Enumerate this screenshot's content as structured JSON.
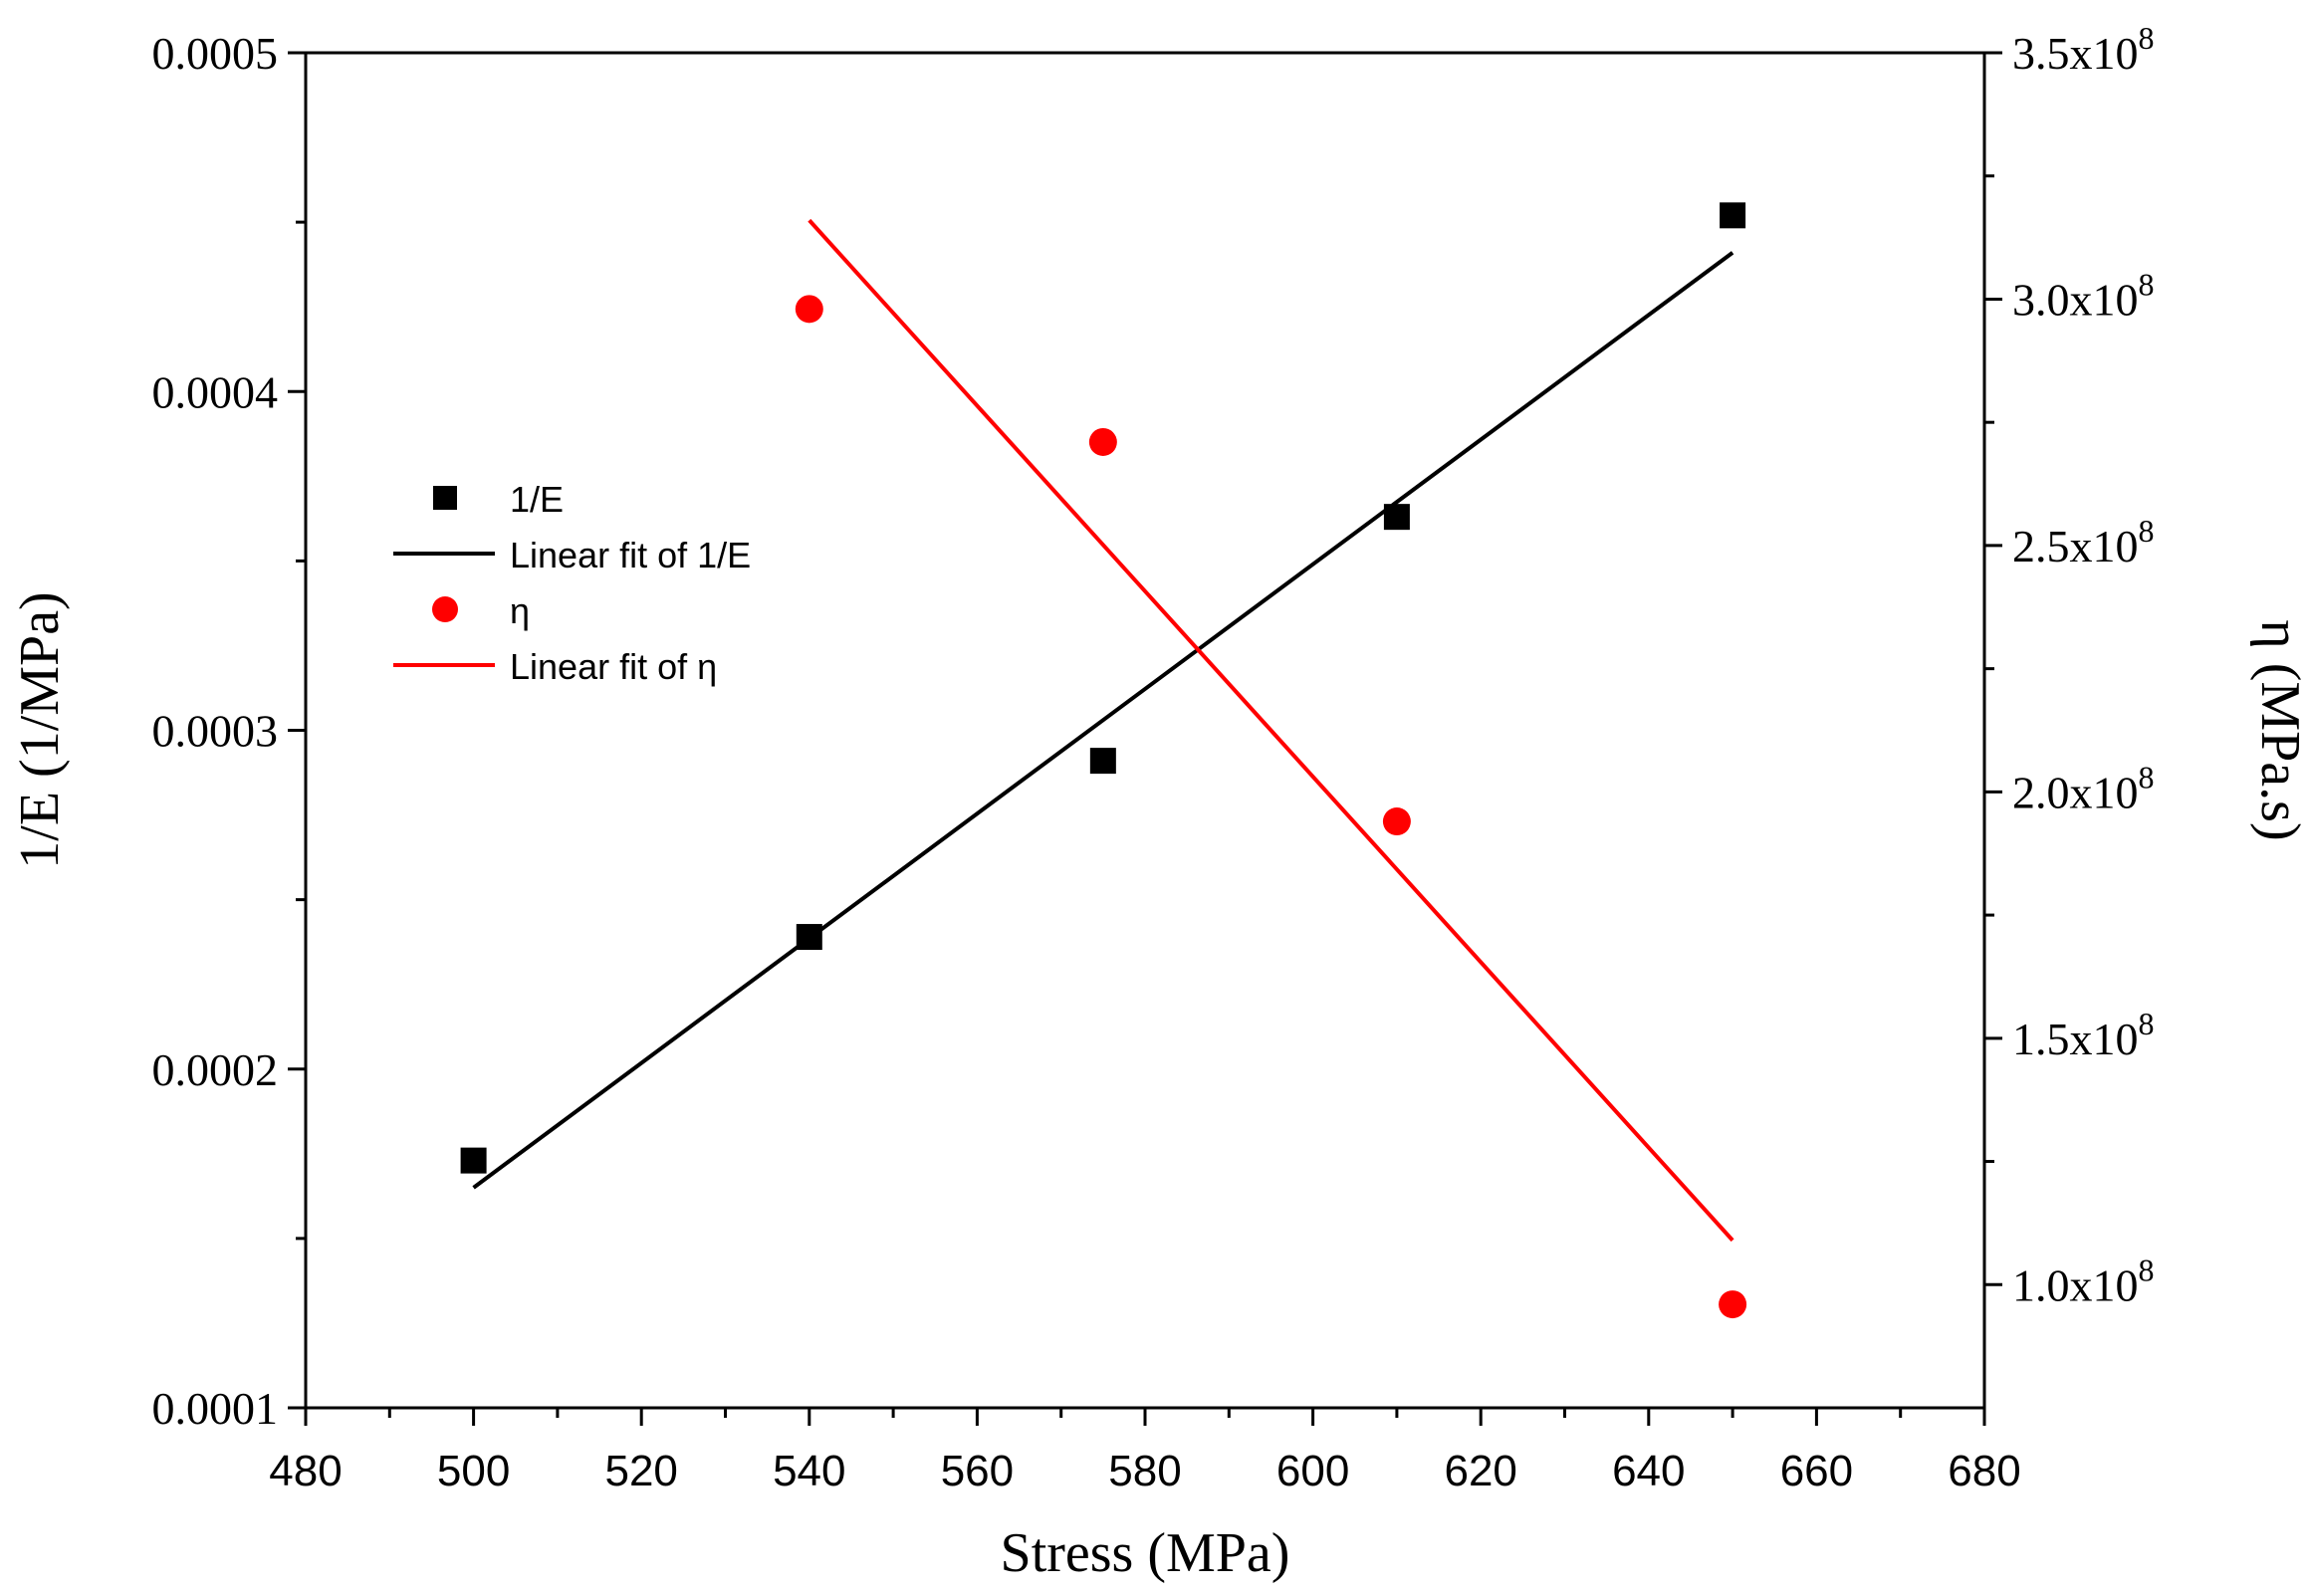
{
  "chart_data": {
    "type": "scatter",
    "xlabel": "Stress (MPa)",
    "ylabel_left": "1/E (1/MPa)",
    "ylabel_right": "η (MPa.s)",
    "xlim": [
      480,
      680
    ],
    "ylim_left": [
      0.0001,
      0.0005
    ],
    "ylim_right": [
      75000000,
      350000000
    ],
    "x_ticks": [
      {
        "value": 480,
        "label": "480"
      },
      {
        "value": 500,
        "label": "500"
      },
      {
        "value": 520,
        "label": "520"
      },
      {
        "value": 540,
        "label": "540"
      },
      {
        "value": 560,
        "label": "560"
      },
      {
        "value": 580,
        "label": "580"
      },
      {
        "value": 600,
        "label": "600"
      },
      {
        "value": 620,
        "label": "620"
      },
      {
        "value": 640,
        "label": "640"
      },
      {
        "value": 660,
        "label": "660"
      },
      {
        "value": 680,
        "label": "680"
      }
    ],
    "x_minor_ticks": [
      490,
      510,
      530,
      550,
      570,
      590,
      610,
      630,
      650,
      670
    ],
    "y_left_ticks": [
      {
        "value": 0.0001,
        "label": "0.0001"
      },
      {
        "value": 0.0002,
        "label": "0.0002"
      },
      {
        "value": 0.0003,
        "label": "0.0003"
      },
      {
        "value": 0.0004,
        "label": "0.0004"
      },
      {
        "value": 0.0005,
        "label": "0.0005"
      }
    ],
    "y_left_minor_ticks": [
      0.00015,
      0.00025,
      0.00035,
      0.00045
    ],
    "y_right_ticks": [
      {
        "value": 100000000,
        "mantissa": "1.0x10",
        "exp": "8"
      },
      {
        "value": 150000000,
        "mantissa": "1.5x10",
        "exp": "8"
      },
      {
        "value": 200000000,
        "mantissa": "2.0x10",
        "exp": "8"
      },
      {
        "value": 250000000,
        "mantissa": "2.5x10",
        "exp": "8"
      },
      {
        "value": 300000000,
        "mantissa": "3.0x10",
        "exp": "8"
      },
      {
        "value": 350000000,
        "mantissa": "3.5x10",
        "exp": "8"
      }
    ],
    "y_right_minor_ticks": [
      125000000,
      175000000,
      225000000,
      275000000,
      325000000
    ],
    "series": [
      {
        "name": "1/E",
        "axis": "left",
        "marker": "square",
        "color": "#000000",
        "x": [
          500,
          540,
          575,
          610,
          650
        ],
        "values": [
          0.000173,
          0.000239,
          0.000291,
          0.000363,
          0.000452
        ]
      },
      {
        "name": "Linear fit of 1/E",
        "axis": "left",
        "marker": "line",
        "color": "#000000",
        "x": [
          500,
          650
        ],
        "values": [
          0.000165,
          0.000441
        ]
      },
      {
        "name": "η",
        "axis": "right",
        "marker": "circle",
        "color": "#ff0000",
        "x": [
          540,
          575,
          610,
          650
        ],
        "values": [
          298000000,
          271000000,
          194000000,
          96000000
        ]
      },
      {
        "name": "Linear fit of η",
        "axis": "right",
        "marker": "line",
        "color": "#ff0000",
        "x": [
          540,
          650
        ],
        "values": [
          316000000,
          109000000
        ]
      }
    ],
    "legend": {
      "position": "upper-left",
      "entries": [
        "1/E",
        "Linear fit of 1/E",
        "η",
        "Linear fit of η"
      ]
    }
  }
}
